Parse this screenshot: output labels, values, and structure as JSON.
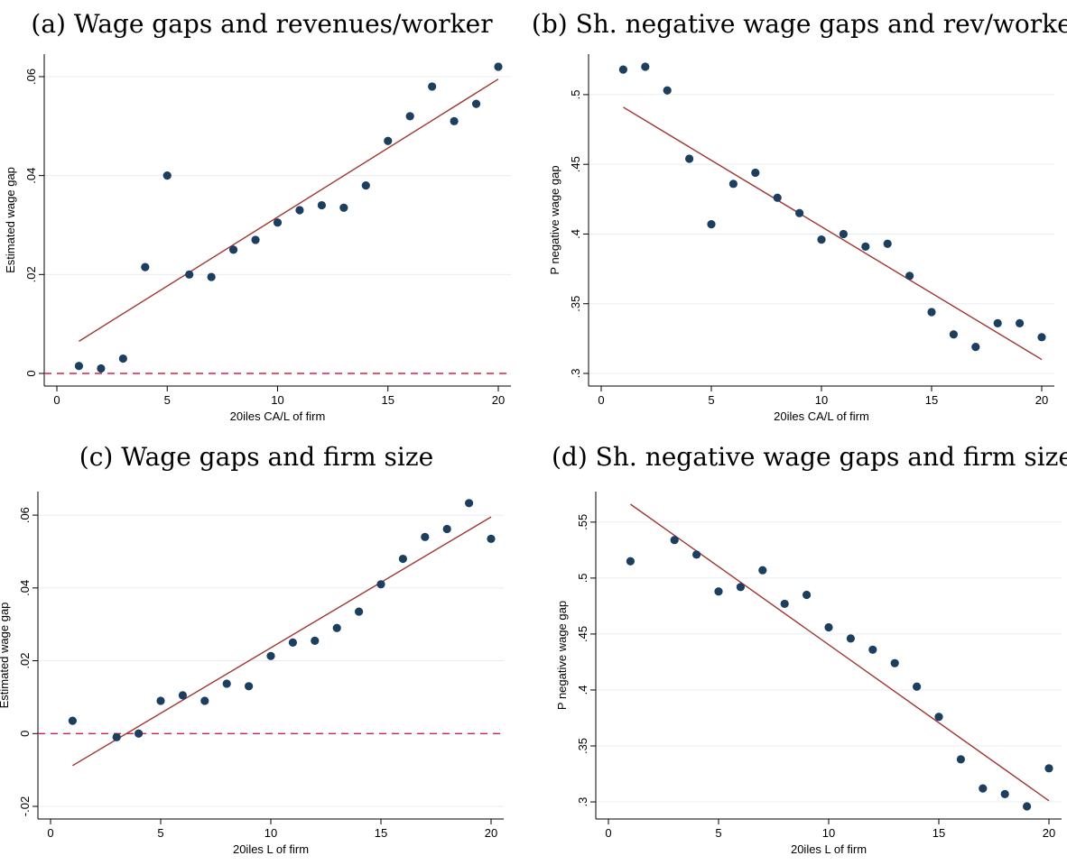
{
  "chart_data": [
    {
      "type": "scatter",
      "title": "(a) Wage gaps and revenues/worker",
      "xlabel": "20iles CA/L of firm",
      "ylabel": "Estimated wage gap",
      "xlim": [
        0,
        20
      ],
      "ylim": [
        0,
        0.062
      ],
      "xticks": [
        0,
        5,
        10,
        15,
        20
      ],
      "yticks": [
        0,
        0.02,
        0.04,
        0.06
      ],
      "ytick_labels": [
        "0",
        ".02",
        ".04",
        ".06"
      ],
      "grid": true,
      "zero_line": true,
      "x": [
        1,
        2,
        3,
        4,
        5,
        6,
        7,
        8,
        9,
        10,
        11,
        12,
        13,
        14,
        15,
        16,
        17,
        18,
        19,
        20
      ],
      "y": [
        0.0015,
        0.001,
        0.003,
        0.0215,
        0.04,
        0.02,
        0.0195,
        0.025,
        0.027,
        0.0305,
        0.033,
        0.034,
        0.0335,
        0.038,
        0.047,
        0.052,
        0.058,
        0.051,
        0.0545,
        0.062
      ],
      "fit_line": {
        "x": [
          1,
          20
        ],
        "y": [
          0.0065,
          0.0595
        ]
      }
    },
    {
      "type": "scatter",
      "title": "(b) Sh. negative wage gaps and rev/worker",
      "xlabel": "20iles CA/L of firm",
      "ylabel": "P negative wage gap",
      "xlim": [
        0,
        20
      ],
      "ylim": [
        0.3,
        0.52
      ],
      "xticks": [
        0,
        5,
        10,
        15,
        20
      ],
      "yticks": [
        0.3,
        0.35,
        0.4,
        0.45,
        0.5
      ],
      "ytick_labels": [
        ".3",
        ".35",
        ".4",
        ".45",
        ".5"
      ],
      "grid": true,
      "zero_line": false,
      "x": [
        1,
        2,
        3,
        4,
        5,
        6,
        7,
        8,
        9,
        10,
        11,
        12,
        13,
        14,
        15,
        16,
        17,
        18,
        19,
        20
      ],
      "y": [
        0.518,
        0.52,
        0.503,
        0.454,
        0.407,
        0.436,
        0.444,
        0.426,
        0.415,
        0.396,
        0.4,
        0.391,
        0.393,
        0.37,
        0.344,
        0.328,
        0.319,
        0.336,
        0.336,
        0.326
      ],
      "fit_line": {
        "x": [
          1,
          20
        ],
        "y": [
          0.491,
          0.31
        ]
      }
    },
    {
      "type": "scatter",
      "title": "(c) Wage gaps and firm size",
      "xlabel": "20iles L of firm",
      "ylabel": "Estimated wage gap",
      "xlim": [
        0,
        20
      ],
      "ylim": [
        -0.02,
        0.063
      ],
      "xticks": [
        0,
        5,
        10,
        15,
        20
      ],
      "yticks": [
        -0.02,
        0,
        0.02,
        0.04,
        0.06
      ],
      "ytick_labels": [
        "-.02",
        "0",
        ".02",
        ".04",
        ".06"
      ],
      "grid": true,
      "zero_line": true,
      "x": [
        1,
        3,
        4,
        5,
        6,
        7,
        8,
        9,
        10,
        11,
        12,
        13,
        14,
        15,
        16,
        17,
        18,
        19,
        20
      ],
      "y": [
        0.0035,
        -0.001,
        0,
        0.009,
        0.0105,
        0.009,
        0.0137,
        0.013,
        0.0213,
        0.025,
        0.0255,
        0.029,
        0.0335,
        0.041,
        0.048,
        0.054,
        0.0562,
        0.0633,
        0.0535
      ],
      "fit_line": {
        "x": [
          1,
          20
        ],
        "y": [
          -0.0088,
          0.0595
        ]
      }
    },
    {
      "type": "scatter",
      "title": "(d) Sh. negative wage gaps and firm size",
      "xlabel": "20iles L of firm",
      "ylabel": "P negative wage gap",
      "xlim": [
        0,
        20
      ],
      "ylim": [
        0.296,
        0.566
      ],
      "xticks": [
        0,
        5,
        10,
        15,
        20
      ],
      "yticks": [
        0.3,
        0.35,
        0.4,
        0.45,
        0.5,
        0.55
      ],
      "ytick_labels": [
        ".3",
        ".35",
        ".4",
        ".45",
        ".5",
        ".55"
      ],
      "grid": true,
      "zero_line": false,
      "x": [
        1,
        3,
        4,
        5,
        6,
        7,
        8,
        9,
        10,
        11,
        12,
        13,
        14,
        15,
        16,
        17,
        18,
        19,
        20
      ],
      "y": [
        0.515,
        0.534,
        0.521,
        0.488,
        0.492,
        0.507,
        0.477,
        0.485,
        0.456,
        0.446,
        0.436,
        0.424,
        0.403,
        0.376,
        0.338,
        0.312,
        0.307,
        0.296,
        0.33
      ],
      "fit_line": {
        "x": [
          1,
          20
        ],
        "y": [
          0.566,
          0.301
        ]
      }
    }
  ]
}
